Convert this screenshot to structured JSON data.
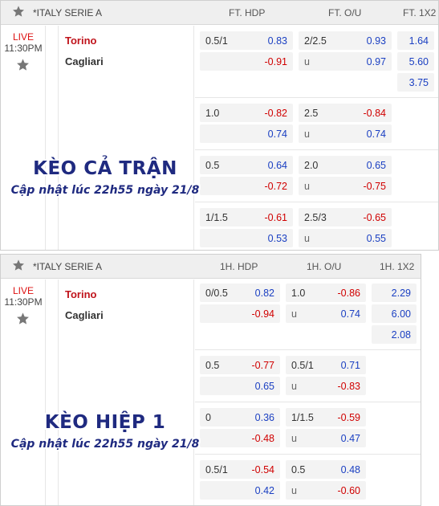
{
  "panels": [
    {
      "league": "*ITALY SERIE A",
      "col_hdp": "FT. HDP",
      "col_ou": "FT. O/U",
      "col_1x2": "FT. 1X2",
      "live": "LIVE",
      "time": "11:30PM",
      "home": "Torino",
      "away": "Cagliari",
      "overlay_title": "KÈO CẢ TRẬN",
      "overlay_sub": "Cập nhật lúc 22h55 ngày 21/8",
      "groups": [
        {
          "hdp_line": "0.5/1",
          "hdp_home": "0.83",
          "hdp_away": "-0.91",
          "ou_line": "2/2.5",
          "ou_over": "0.93",
          "ou_u": "u",
          "ou_under": "0.97"
        },
        {
          "hdp_line": "1.0",
          "hdp_home": "-0.82",
          "hdp_away": "0.74",
          "ou_line": "2.5",
          "ou_over": "-0.84",
          "ou_u": "u",
          "ou_under": "0.74"
        },
        {
          "hdp_line": "0.5",
          "hdp_home": "0.64",
          "hdp_away": "-0.72",
          "ou_line": "2.0",
          "ou_over": "0.65",
          "ou_u": "u",
          "ou_under": "-0.75"
        },
        {
          "hdp_line": "1/1.5",
          "hdp_home": "-0.61",
          "hdp_away": "0.53",
          "ou_line": "2.5/3",
          "ou_over": "-0.65",
          "ou_u": "u",
          "ou_under": "0.55"
        }
      ],
      "x12": [
        "1.64",
        "5.60",
        "3.75"
      ]
    },
    {
      "league": "*ITALY SERIE A",
      "col_hdp": "1H. HDP",
      "col_ou": "1H. O/U",
      "col_1x2": "1H. 1X2",
      "live": "LIVE",
      "time": "11:30PM",
      "home": "Torino",
      "away": "Cagliari",
      "overlay_title": "KÈO HIỆP 1",
      "overlay_sub": "Cập nhật lúc 22h55 ngày 21/8",
      "groups": [
        {
          "hdp_line": "0/0.5",
          "hdp_home": "0.82",
          "hdp_away": "-0.94",
          "ou_line": "1.0",
          "ou_over": "-0.86",
          "ou_u": "u",
          "ou_under": "0.74"
        },
        {
          "hdp_line": "0.5",
          "hdp_home": "-0.77",
          "hdp_away": "0.65",
          "ou_line": "0.5/1",
          "ou_over": "0.71",
          "ou_u": "u",
          "ou_under": "-0.83"
        },
        {
          "hdp_line": "0",
          "hdp_home": "0.36",
          "hdp_away": "-0.48",
          "ou_line": "1/1.5",
          "ou_over": "-0.59",
          "ou_u": "u",
          "ou_under": "0.47"
        },
        {
          "hdp_line": "0.5/1",
          "hdp_home": "-0.54",
          "hdp_away": "0.42",
          "ou_line": "0.5",
          "ou_over": "0.48",
          "ou_u": "u",
          "ou_under": "-0.60"
        }
      ],
      "x12": [
        "2.29",
        "6.00",
        "2.08"
      ]
    }
  ]
}
